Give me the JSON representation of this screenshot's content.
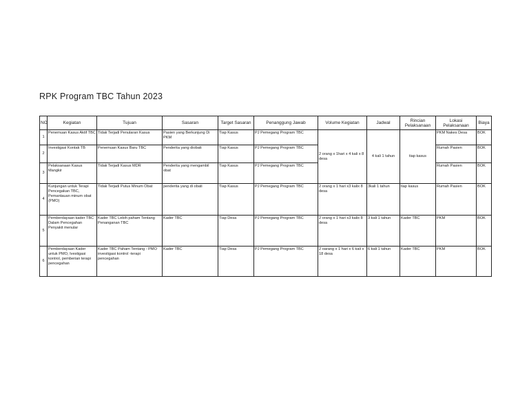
{
  "title": "RPK Program TBC Tahun 2023",
  "headers": [
    "NO",
    "Kegiatan",
    "Tujuan",
    "Sasaran",
    "Target Sasaran",
    "Penanggung Jawab",
    "Volume Kegiatan",
    "Jadwal",
    "Rincian Pelaksanaan",
    "Lokasi Pelaksanaan",
    "Biaya"
  ],
  "rows": [
    {
      "no": "1",
      "kegiatan": "Penemuan Kasus Aktif TBC",
      "tujuan": "Tidak Terjadi Penularan Kasus",
      "sasaran": "Pasien yang Berkunjung Di PKM",
      "target": "Tiap Kasus",
      "pj": "PJ Pemegang Program TBC",
      "volume": "2 orang x 1hari x 4 kali x 8 desa",
      "jadwal": "4 kali 1 tahun",
      "rincian": "tiap kasus",
      "lokasi": "PKM Nakes Desa",
      "biaya": "BOK"
    },
    {
      "no": "2",
      "kegiatan": "Investigasi Kontak TB",
      "tujuan": "Penemuan Kasus Baru TBC",
      "sasaran": "Penderita yang diobati",
      "target": "Tiap Kasus",
      "pj": "PJ Pemegang Program TBC",
      "lokasi": "Rumah Pasien",
      "biaya": "BOK"
    },
    {
      "no": "3",
      "kegiatan": "Pelaksanaan Kasus Mangkir",
      "tujuan": "Tidak Terjadi Kasus MDR",
      "sasaran": "Penderita yang mengambil obat",
      "target": "Tiap Kasus",
      "pj": "PJ Pemegang Program TBC",
      "lokasi": "Rumah Pasien",
      "biaya": "BOK"
    },
    {
      "no": "4",
      "kegiatan": "Kunjungan untuk Terapi Pencegakan TBC, Pemantauan minum obat (PMO)",
      "tujuan": "Tidak Terjadi Putus Minum Obat",
      "sasaran": "penderita yang di obati",
      "target": "Tiap Kasus",
      "pj": "PJ Pemegang Program TBC",
      "volume": "2 orang x 1 hari x3 kalix 8 desa",
      "jadwal": "3kali 1 tahun",
      "rincian": "tiap kasus",
      "lokasi": "Rumah Pasien",
      "biaya": "BOK"
    },
    {
      "no": "5",
      "kegiatan": "Pemberdayaan kader TBC Dalam Pencegahan Penyakit menular",
      "tujuan": "Kader TBC Lebih paham Tentang Penanganan TBC",
      "sasaran": "Kader TBC",
      "target": "Tiap Desa",
      "pj": "PJ Pemegang Program TBC",
      "volume": "2 orang x 1 hari x3 kalix 8 desa",
      "jadwal": "3 kali 1 tahun",
      "rincian": "Kader TBC",
      "lokasi": "PKM",
      "biaya": "BOK"
    },
    {
      "no": "6",
      "kegiatan": "Pemberdayaan Kader untuk PMO, Ivestigasi kontrol, pemberian terapi pencegahan",
      "tujuan": "Kader TBC Paham Tentang - PMO investigasi kontrol -terapi pencegahan",
      "sasaran": "Kader TBC",
      "target": "Tiap Desa",
      "pj": "PJ Pemegang Program TBC",
      "volume": "2 oarang x 1 hari x 6 kali x 18 desa",
      "jadwal": "6 kali 1 tahun",
      "rincian": "Kader TBC",
      "lokasi": "PKM",
      "biaya": "BOK"
    }
  ]
}
